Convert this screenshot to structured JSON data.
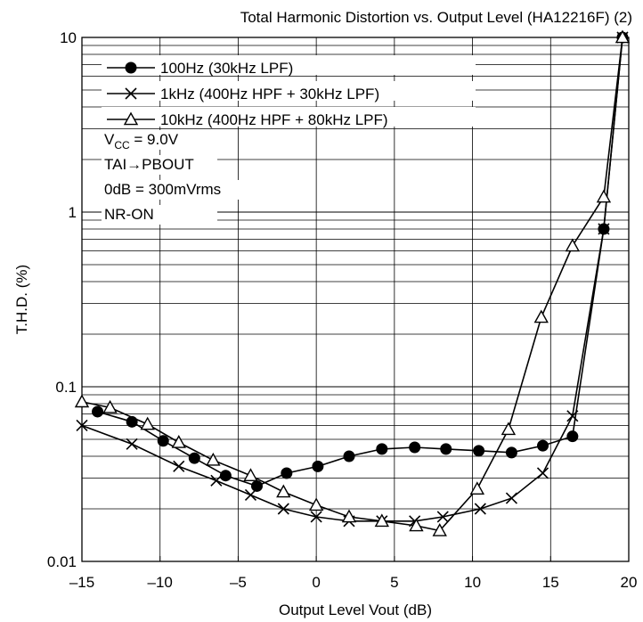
{
  "chart_data": {
    "type": "line",
    "title": "Total Harmonic Distortion vs. Output Level (HA12216F) (2)",
    "xlabel": "Output Level  Vout  (dB)",
    "ylabel": "T.H.D.  (%)",
    "xlim": [
      -15,
      20
    ],
    "ylim": [
      0.01,
      10
    ],
    "yscale": "log",
    "grid": true,
    "x_ticks": [
      -15,
      -10,
      -5,
      0,
      5,
      10,
      15,
      20
    ],
    "x_tick_labels": [
      "–15",
      "–10",
      "–5",
      "0",
      "5",
      "10",
      "15",
      "20"
    ],
    "y_ticks": [
      0.01,
      0.1,
      1,
      10
    ],
    "y_tick_labels": [
      "0.01",
      "0.1",
      "1",
      "10"
    ],
    "legend_position": "top-left",
    "series": [
      {
        "name": "100Hz (30kHz LPF)",
        "marker": "filled-circle",
        "x": [
          -14.0,
          -11.8,
          -9.8,
          -7.8,
          -5.8,
          -3.8,
          -1.9,
          0.1,
          2.1,
          4.2,
          6.3,
          8.3,
          10.4,
          12.5,
          14.5,
          16.4,
          18.4,
          19.6
        ],
        "y": [
          0.072,
          0.063,
          0.049,
          0.039,
          0.031,
          0.027,
          0.032,
          0.035,
          0.04,
          0.044,
          0.045,
          0.044,
          0.043,
          0.042,
          0.046,
          0.052,
          0.8,
          10
        ]
      },
      {
        "name": "1kHz (400Hz HPF + 30kHz LPF)",
        "marker": "x",
        "x": [
          -15.0,
          -11.8,
          -8.8,
          -6.4,
          -4.2,
          -2.1,
          0.0,
          2.1,
          4.2,
          6.3,
          8.1,
          10.5,
          12.5,
          14.5,
          16.4,
          18.4,
          19.6
        ],
        "y": [
          0.06,
          0.047,
          0.035,
          0.029,
          0.024,
          0.02,
          0.018,
          0.017,
          0.017,
          0.017,
          0.018,
          0.02,
          0.023,
          0.032,
          0.068,
          0.8,
          10
        ]
      },
      {
        "name": "10kHz (400Hz HPF + 80kHz LPF)",
        "marker": "open-triangle",
        "x": [
          -15.0,
          -13.2,
          -10.8,
          -8.8,
          -6.6,
          -4.2,
          -2.1,
          0.0,
          2.1,
          4.2,
          6.4,
          7.9,
          10.3,
          12.3,
          14.4,
          16.4,
          18.4,
          19.6
        ],
        "y": [
          0.082,
          0.076,
          0.061,
          0.048,
          0.038,
          0.031,
          0.025,
          0.021,
          0.018,
          0.017,
          0.016,
          0.015,
          0.026,
          0.057,
          0.25,
          0.64,
          1.22,
          10
        ]
      }
    ],
    "annotations": [
      {
        "base": "V",
        "sub": "CC",
        "rest": " = 9.0V"
      },
      {
        "text": "TAI→PBOUT"
      },
      {
        "text": "0dB = 300mVrms"
      },
      {
        "text": "NR-ON"
      }
    ]
  }
}
